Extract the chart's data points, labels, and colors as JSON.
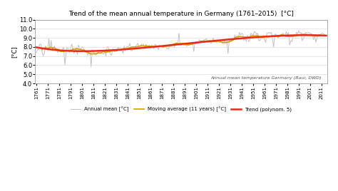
{
  "title": "Trend of the mean annual temperature in Germany (1761–2015)  [°C]",
  "ylabel": "[°C]",
  "source_text": "Annual mean temperature Germany (Baur, DWD)",
  "year_start": 1761,
  "year_end": 2015,
  "ylim": [
    4.0,
    11.0
  ],
  "yticks": [
    4.0,
    5.0,
    6.0,
    7.0,
    8.0,
    9.0,
    10.0,
    11.0
  ],
  "xticks": [
    1761,
    1771,
    1781,
    1791,
    1801,
    1811,
    1821,
    1831,
    1841,
    1851,
    1861,
    1871,
    1881,
    1891,
    1901,
    1911,
    1921,
    1931,
    1941,
    1951,
    1961,
    1971,
    1981,
    1991,
    2001,
    2011
  ],
  "annual_color": "#c0c0c0",
  "moving_avg_color": "#d4a000",
  "trend_color": "#e8291c",
  "annual_lw": 0.7,
  "moving_avg_lw": 1.2,
  "trend_lw": 1.8,
  "legend_labels": [
    "Annual mean [°C]",
    "Moving average (11 years) [°C]",
    "Trend (polynom. 5)"
  ],
  "background_color": "#ffffff",
  "poly_degree": 5,
  "moving_avg_window": 11,
  "annual_temps": [
    7.4,
    7.7,
    7.7,
    8.3,
    8.3,
    7.5,
    7.0,
    7.3,
    8.1,
    7.9,
    7.6,
    8.9,
    7.7,
    8.7,
    7.6,
    7.9,
    8.1,
    7.6,
    7.6,
    7.4,
    7.8,
    7.5,
    7.6,
    7.8,
    8.0,
    6.0,
    7.2,
    8.0,
    7.8,
    7.4,
    7.9,
    8.3,
    7.9,
    7.3,
    7.6,
    7.9,
    7.2,
    8.2,
    7.8,
    7.8,
    8.0,
    8.0,
    7.5,
    7.5,
    7.5,
    7.1,
    7.4,
    7.6,
    5.8,
    7.7,
    7.5,
    7.2,
    7.1,
    7.3,
    7.3,
    7.6,
    7.5,
    7.4,
    7.3,
    7.2,
    7.5,
    7.0,
    8.0,
    8.0,
    7.5,
    7.2,
    7.1,
    7.8,
    7.5,
    7.5,
    7.6,
    7.8,
    8.0,
    7.6,
    7.6,
    7.6,
    7.3,
    8.1,
    7.6,
    8.0,
    8.0,
    8.1,
    8.4,
    7.6,
    7.6,
    8.0,
    7.7,
    8.1,
    8.2,
    8.4,
    8.0,
    7.8,
    8.3,
    8.3,
    8.3,
    7.8,
    8.3,
    7.9,
    8.1,
    8.2,
    8.0,
    8.2,
    8.0,
    7.8,
    8.3,
    8.2,
    8.0,
    7.7,
    8.2,
    8.0,
    8.1,
    8.1,
    8.1,
    8.2,
    7.9,
    7.8,
    7.8,
    8.3,
    8.2,
    8.3,
    8.3,
    8.0,
    8.3,
    8.5,
    8.3,
    9.5,
    8.2,
    8.2,
    8.3,
    8.2,
    8.2,
    8.3,
    8.1,
    8.3,
    8.3,
    8.3,
    8.4,
    8.5,
    7.5,
    8.5,
    8.6,
    8.4,
    8.6,
    8.8,
    8.4,
    8.6,
    8.6,
    8.8,
    8.8,
    8.9,
    8.6,
    8.5,
    8.6,
    8.4,
    8.5,
    9.0,
    8.7,
    8.7,
    8.5,
    8.6,
    8.5,
    8.5,
    8.7,
    8.8,
    8.5,
    8.7,
    8.4,
    8.6,
    7.3,
    8.6,
    8.8,
    8.7,
    8.7,
    8.8,
    9.3,
    8.9,
    9.2,
    9.0,
    9.6,
    9.3,
    9.5,
    9.4,
    8.7,
    9.0,
    8.6,
    9.3,
    8.6,
    8.7,
    9.5,
    9.4,
    9.2,
    9.7,
    9.6,
    9.4,
    9.5,
    8.7,
    8.7,
    9.2,
    8.9,
    9.3,
    8.8,
    8.5,
    9.5,
    9.5,
    9.6,
    9.5,
    9.6,
    8.8,
    8.0,
    9.4,
    9.4,
    9.2,
    9.0,
    9.2,
    9.2,
    9.4,
    9.5,
    9.4,
    9.2,
    9.7,
    9.3,
    9.6,
    8.2,
    8.7,
    8.6,
    9.2,
    9.4,
    9.2,
    9.6,
    9.4,
    9.8,
    9.5,
    9.6,
    8.7,
    8.9,
    9.2,
    9.6,
    9.5,
    9.5,
    9.6,
    9.4,
    9.5,
    9.3,
    8.8,
    9.3,
    8.5,
    9.1,
    9.2,
    9.4,
    9.3,
    9.5,
    9.5,
    9.4,
    9.3,
    9.2
  ]
}
